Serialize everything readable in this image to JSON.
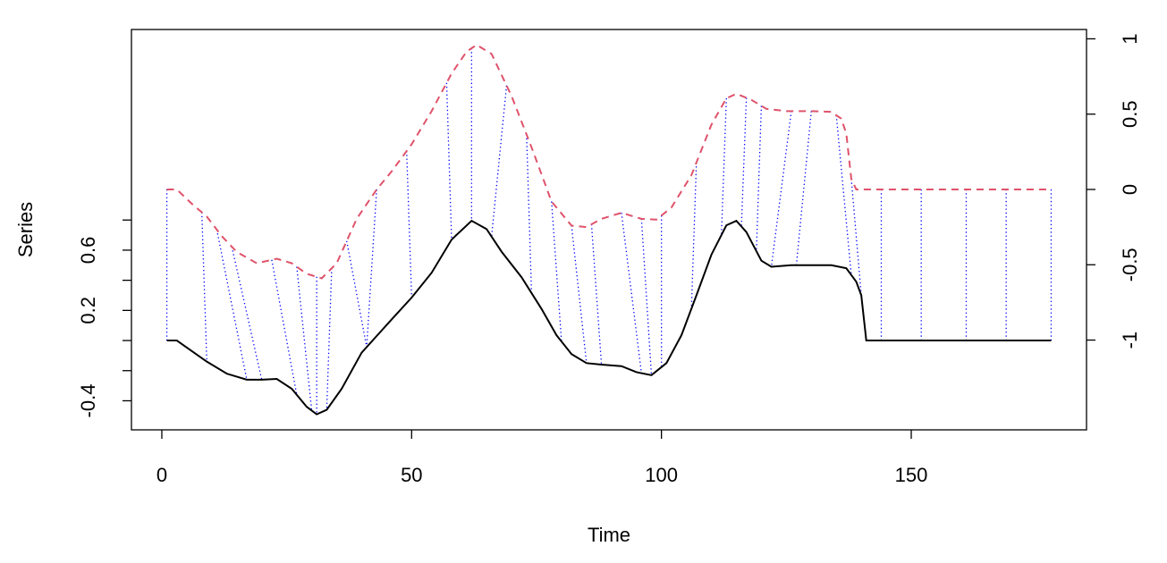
{
  "chart_data": {
    "type": "line",
    "x_label": "Time",
    "y_label": "Series",
    "xlim": [
      -6.08,
      185.08
    ],
    "xticks": [
      0,
      50,
      100,
      150
    ],
    "ylim": [
      -0.593,
      2.065
    ],
    "yticks": [
      -0.4,
      {
        "value": -0.2,
        "label": null
      },
      {
        "value": 0,
        "label": null
      },
      0.2,
      {
        "value": 0.4,
        "label": null
      },
      0.6,
      {
        "value": 0.8,
        "label": null
      }
    ],
    "y2lim": [
      -1.596,
      1.062
    ],
    "y2ticks": [
      -1,
      -0.5,
      0,
      0.5,
      1
    ],
    "series": [
      {
        "color": "#000000",
        "line_style": "solid",
        "axis": "y",
        "x": [
          1,
          3,
          9,
          13,
          17,
          20,
          23,
          26,
          29,
          31,
          33,
          36,
          40,
          43,
          46,
          50,
          54,
          58,
          62,
          65,
          68,
          72,
          76,
          79,
          82,
          85,
          88,
          92,
          95,
          98,
          101,
          104,
          107,
          110,
          113,
          115,
          117,
          120,
          122,
          126,
          130,
          134,
          137,
          139,
          140,
          141,
          178
        ],
        "values": [
          0,
          0,
          -0.14,
          -0.22,
          -0.26,
          -0.26,
          -0.255,
          -0.32,
          -0.44,
          -0.49,
          -0.46,
          -0.32,
          -0.08,
          0.03,
          0.14,
          0.285,
          0.45,
          0.67,
          0.795,
          0.74,
          0.59,
          0.42,
          0.21,
          0.035,
          -0.09,
          -0.15,
          -0.16,
          -0.17,
          -0.21,
          -0.23,
          -0.15,
          0.035,
          0.3,
          0.57,
          0.765,
          0.795,
          0.72,
          0.53,
          0.49,
          0.5,
          0.5,
          0.5,
          0.48,
          0.39,
          0.3,
          0,
          0
        ]
      },
      {
        "color": "#DF536B",
        "line_style": "dashed",
        "axis": "y2",
        "x": [
          1,
          3,
          6,
          9,
          12,
          15,
          19,
          23,
          26,
          29,
          32,
          35,
          39,
          43,
          46,
          50,
          54,
          58,
          61,
          63,
          66,
          70,
          74,
          78,
          82,
          85,
          88,
          92,
          96,
          99,
          102,
          106,
          110,
          113,
          115,
          118,
          121,
          125,
          130,
          134,
          136,
          137,
          138,
          139,
          178
        ],
        "values": [
          0,
          0,
          -0.095,
          -0.18,
          -0.31,
          -0.415,
          -0.49,
          -0.46,
          -0.49,
          -0.56,
          -0.59,
          -0.49,
          -0.195,
          0,
          0.12,
          0.3,
          0.52,
          0.77,
          0.915,
          0.96,
          0.9,
          0.62,
          0.28,
          -0.08,
          -0.24,
          -0.25,
          -0.195,
          -0.155,
          -0.195,
          -0.2,
          -0.12,
          0.095,
          0.43,
          0.605,
          0.635,
          0.595,
          0.535,
          0.52,
          0.52,
          0.515,
          0.47,
          0.37,
          0.07,
          0,
          0
        ]
      }
    ],
    "match_color": "#0000FF",
    "matches": [
      [
        1,
        1
      ],
      [
        8,
        9
      ],
      [
        11,
        17
      ],
      [
        14,
        20
      ],
      [
        22,
        27
      ],
      [
        27,
        30
      ],
      [
        31,
        31
      ],
      [
        34,
        33
      ],
      [
        37,
        41
      ],
      [
        43,
        41
      ],
      [
        49,
        50
      ],
      [
        57,
        58
      ],
      [
        62,
        62
      ],
      [
        69,
        66
      ],
      [
        73,
        74
      ],
      [
        78,
        80
      ],
      [
        82,
        85
      ],
      [
        86,
        88
      ],
      [
        92,
        96
      ],
      [
        96,
        98
      ],
      [
        100,
        100
      ],
      [
        107,
        106
      ],
      [
        113,
        112
      ],
      [
        117,
        116
      ],
      [
        120,
        119
      ],
      [
        126,
        122
      ],
      [
        130,
        127
      ],
      [
        135,
        138
      ],
      [
        138,
        140
      ],
      [
        144,
        144
      ],
      [
        152,
        152
      ],
      [
        161,
        161
      ],
      [
        169,
        169
      ],
      [
        178,
        178
      ]
    ]
  }
}
